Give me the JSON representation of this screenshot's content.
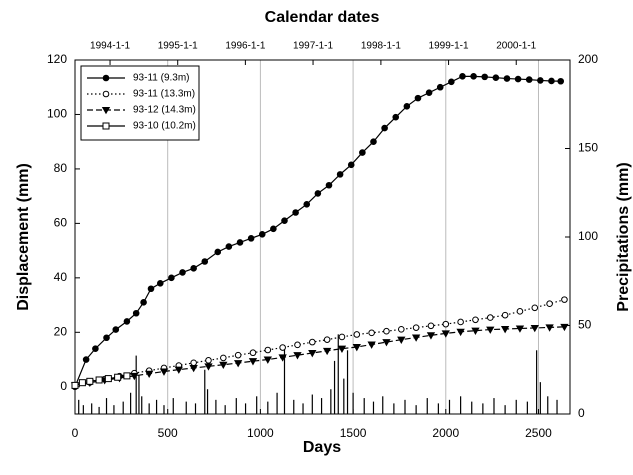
{
  "chart_data": {
    "type": "line",
    "xlabel": "Days",
    "ylabel": "Displacement (mm)",
    "y2label": "Precipitations (mm)",
    "x2label": "Calendar dates",
    "xlim": [
      0,
      2670
    ],
    "xticks": [
      0,
      500,
      1000,
      1500,
      2000,
      2500
    ],
    "ylim": [
      -10,
      120
    ],
    "yticks": [
      0,
      20,
      40,
      60,
      80,
      100,
      120
    ],
    "y2lim": [
      0,
      200
    ],
    "y2ticks": [
      0,
      50,
      100,
      150,
      200
    ],
    "x2ticks": [
      {
        "value": 189,
        "label": "1994-1-1"
      },
      {
        "value": 554,
        "label": "1995-1-1"
      },
      {
        "value": 919,
        "label": "1996-1-1"
      },
      {
        "value": 1284,
        "label": "1997-1-1"
      },
      {
        "value": 1650,
        "label": "1998-1-1"
      },
      {
        "value": 2015,
        "label": "1999-1-1"
      },
      {
        "value": 2380,
        "label": "2000-1-1"
      }
    ],
    "grid": "x",
    "legend": "upper left",
    "series": [
      {
        "name": "93-11 (9.3m)",
        "color": "#000000",
        "marker": "filled-circle",
        "linestyle": "solid",
        "x": [
          0,
          60,
          110,
          170,
          220,
          280,
          330,
          370,
          410,
          460,
          520,
          580,
          640,
          700,
          770,
          830,
          890,
          950,
          1010,
          1070,
          1130,
          1190,
          1250,
          1310,
          1370,
          1430,
          1490,
          1550,
          1610,
          1670,
          1730,
          1790,
          1850,
          1910,
          1970,
          2030,
          2090,
          2150,
          2210,
          2270,
          2330,
          2390,
          2450,
          2510,
          2570,
          2620
        ],
        "values": [
          0,
          10,
          14,
          18,
          21,
          24,
          27,
          31,
          36,
          38,
          40,
          42,
          43.5,
          46,
          49.5,
          51.5,
          53,
          54.5,
          56,
          58,
          61,
          64,
          67,
          71,
          74,
          78,
          81.5,
          86,
          90,
          95,
          99,
          103,
          106,
          108,
          110,
          112,
          114,
          114,
          113.8,
          113.5,
          113.2,
          113,
          112.8,
          112.5,
          112.3,
          112.2
        ]
      },
      {
        "name": "93-11 (13.3m)",
        "color": "#000000",
        "marker": "open-circle",
        "linestyle": "dotted",
        "x": [
          0,
          80,
          160,
          240,
          320,
          400,
          480,
          560,
          640,
          720,
          800,
          880,
          960,
          1040,
          1120,
          1200,
          1280,
          1360,
          1440,
          1520,
          1600,
          1680,
          1760,
          1840,
          1920,
          2000,
          2080,
          2160,
          2240,
          2320,
          2400,
          2480,
          2560,
          2640
        ],
        "values": [
          0.5,
          1.6,
          2.8,
          3.9,
          5,
          5.9,
          6.9,
          7.8,
          8.8,
          9.7,
          10.6,
          11.6,
          12.5,
          13.5,
          14.4,
          15.4,
          16.4,
          17.3,
          18.3,
          19.2,
          19.8,
          20.4,
          21.1,
          21.7,
          22.4,
          23,
          23.8,
          24.6,
          25.4,
          26.3,
          27.7,
          29,
          30.5,
          32
        ]
      },
      {
        "name": "93-12 (14.3m)",
        "color": "#000000",
        "marker": "filled-triangle-down",
        "linestyle": "dashed",
        "x": [
          0,
          80,
          160,
          240,
          320,
          400,
          480,
          560,
          640,
          720,
          800,
          880,
          960,
          1040,
          1120,
          1200,
          1280,
          1360,
          1440,
          1520,
          1600,
          1680,
          1760,
          1840,
          1920,
          2000,
          2080,
          2160,
          2240,
          2320,
          2400,
          2480,
          2560,
          2640
        ],
        "values": [
          0.5,
          1.5,
          2.4,
          3.2,
          4,
          4.8,
          5.6,
          6.3,
          6.9,
          7.5,
          8.1,
          8.7,
          9.4,
          10,
          10.8,
          11.6,
          12.4,
          13.2,
          14,
          14.6,
          15.5,
          16.4,
          17.3,
          18.1,
          18.9,
          19.6,
          20.2,
          20.6,
          21,
          21.2,
          21.4,
          21.6,
          21.8,
          22
        ]
      },
      {
        "name": "93-10 (10.2m)",
        "color": "#000000",
        "marker": "open-square",
        "linestyle": "solid",
        "x": [
          0,
          40,
          80,
          130,
          180,
          230,
          280
        ],
        "values": [
          0.5,
          1.5,
          2,
          2.5,
          3,
          3.5,
          4
        ]
      }
    ],
    "precipitation": {
      "axis": "y2",
      "color": "#000000",
      "x": [
        20,
        45,
        90,
        130,
        170,
        210,
        260,
        300,
        330,
        345,
        360,
        400,
        440,
        480,
        530,
        600,
        650,
        700,
        715,
        760,
        810,
        870,
        920,
        980,
        1040,
        1090,
        1130,
        1180,
        1230,
        1280,
        1330,
        1380,
        1400,
        1420,
        1450,
        1470,
        1500,
        1560,
        1610,
        1660,
        1720,
        1780,
        1840,
        1900,
        1960,
        2020,
        2080,
        2140,
        2200,
        2260,
        2320,
        2380,
        2440,
        2490,
        2510,
        2550,
        2600
      ],
      "values": [
        8,
        5,
        6,
        4,
        9,
        5,
        7,
        12,
        33,
        22,
        10,
        6,
        8,
        5,
        9,
        7,
        6,
        25,
        14,
        8,
        5,
        9,
        6,
        10,
        7,
        12,
        39,
        8,
        6,
        11,
        9,
        14,
        30,
        45,
        20,
        36,
        12,
        9,
        7,
        10,
        6,
        8,
        5,
        9,
        6,
        8,
        10,
        7,
        6,
        9,
        5,
        8,
        7,
        36,
        18,
        10,
        8
      ]
    }
  }
}
